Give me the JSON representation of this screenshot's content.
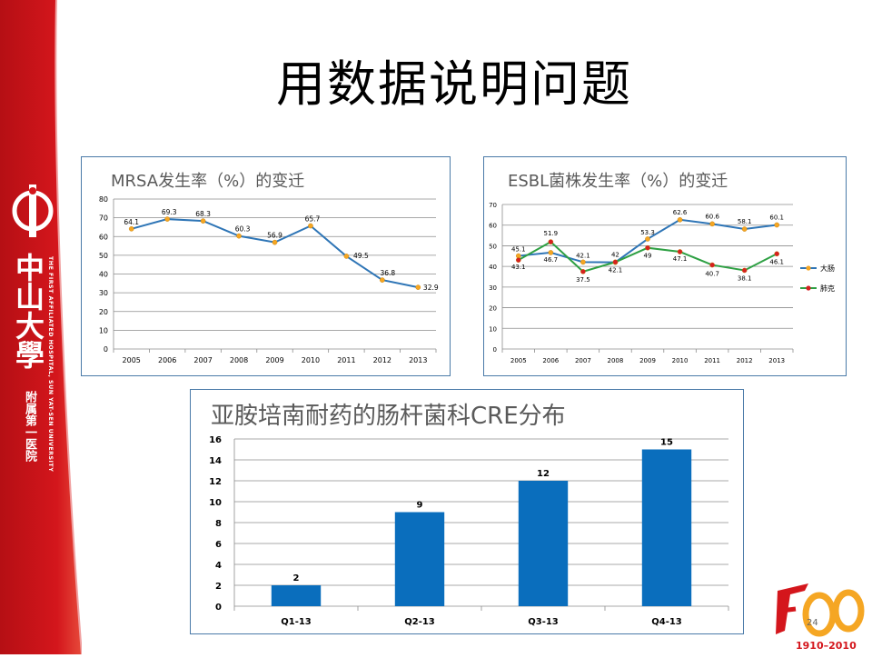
{
  "slide": {
    "title": "用数据说明问题",
    "page_number": "24"
  },
  "sidebar": {
    "logo_text": "中山大學",
    "subtitle": "附属第一医院",
    "english_name": "THE FIRST AFFILIATED HOSPITAL, SUN YAT-SEN UNIVERSITY",
    "bg_color": "#d4161c"
  },
  "anniversary_logo": {
    "text": "1910–2010",
    "mark": "100"
  },
  "chart_data": [
    {
      "type": "line",
      "title": "MRSA发生率（%）的变迁",
      "x": [
        "2005",
        "2006",
        "2007",
        "2008",
        "2009",
        "2010",
        "2011",
        "2012",
        "2013"
      ],
      "series": [
        {
          "values": [
            64.1,
            69.3,
            68.3,
            60.3,
            56.9,
            65.7,
            49.5,
            36.8,
            32.9
          ],
          "labels": [
            "64.1",
            "69.3",
            "68.3",
            "60.3",
            "56.9",
            "65.7",
            "49.5",
            "36.8",
            "32.9"
          ],
          "color": "#2e75b6",
          "marker_color": "#f5a623"
        }
      ],
      "ylim": [
        0,
        80
      ],
      "yticks": [
        0,
        10,
        20,
        30,
        40,
        50,
        60,
        70,
        80
      ],
      "grid": true,
      "legend": "none"
    },
    {
      "type": "line",
      "title": "ESBL菌株发生率（%）的变迁",
      "x": [
        "2005",
        "2006",
        "2007",
        "2008",
        "2009",
        "2010",
        "2011",
        "2012",
        "2013"
      ],
      "series": [
        {
          "name": "大肠",
          "values": [
            45.1,
            46.7,
            42.1,
            42,
            53.3,
            62.6,
            60.6,
            58.1,
            60.1
          ],
          "labels": [
            "45.1",
            "46.7",
            "42.1",
            "42",
            "53.3",
            "62.6",
            "60.6",
            "58.1",
            "60.1"
          ],
          "color": "#2e75b6",
          "marker_color": "#f5a623"
        },
        {
          "name": "肺克",
          "values": [
            43.1,
            51.9,
            37.5,
            42.1,
            49,
            47.1,
            40.7,
            38.1,
            46.1
          ],
          "labels": [
            "43.1",
            "51.9",
            "37.5",
            "42.1",
            "49",
            "47.1",
            "40.7",
            "38.1",
            "46.1"
          ],
          "color": "#2ea043",
          "marker_color": "#d62020"
        }
      ],
      "ylim": [
        0,
        70
      ],
      "yticks": [
        0,
        10,
        20,
        30,
        40,
        50,
        60,
        70
      ],
      "grid": true,
      "legend": "right"
    },
    {
      "type": "bar",
      "title": "亚胺培南耐药的肠杆菌科CRE分布",
      "categories": [
        "Q1-13",
        "Q2-13",
        "Q3-13",
        "Q4-13"
      ],
      "values": [
        2,
        9,
        12,
        15
      ],
      "labels": [
        "2",
        "9",
        "12",
        "15"
      ],
      "ylim": [
        0,
        16
      ],
      "yticks": [
        0,
        2,
        4,
        6,
        8,
        10,
        12,
        14,
        16
      ],
      "color": "#0a6ebd",
      "grid": true,
      "legend": "none"
    }
  ]
}
